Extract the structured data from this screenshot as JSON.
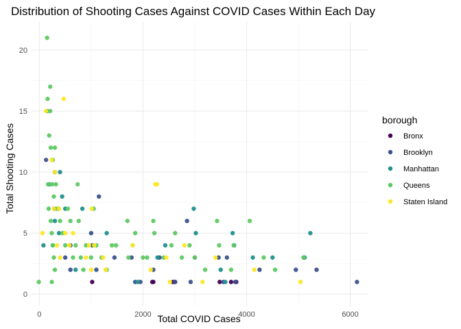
{
  "chart_data": {
    "type": "scatter",
    "title": "Distribution of Shooting Cases Against COVID Cases Within Each Day",
    "xlabel": "Total COVID Cases",
    "ylabel": "Total Shooting Cases",
    "xlim": [
      -150,
      6350
    ],
    "ylim": [
      -1,
      22.3
    ],
    "x_ticks": [
      0,
      2000,
      4000,
      6000
    ],
    "x_tick_labels": [
      "0",
      "2000",
      "4000",
      "6000"
    ],
    "y_ticks": [
      0,
      5,
      10,
      15,
      20
    ],
    "y_tick_labels": [
      "0",
      "5",
      "10",
      "15",
      "20"
    ],
    "grid": true,
    "legend": {
      "title": "borough",
      "placement": "right"
    },
    "series": [
      {
        "name": "Bronx",
        "color": "#440154",
        "points": [
          [
            1020,
            1
          ],
          [
            2200,
            1
          ],
          [
            2620,
            1
          ],
          [
            3480,
            1
          ],
          [
            3700,
            1
          ],
          [
            3800,
            1
          ],
          [
            2580,
            1
          ],
          [
            2180,
            1
          ]
        ]
      },
      {
        "name": "Brooklyn",
        "color": "#3b528b",
        "points": [
          [
            130,
            11
          ],
          [
            300,
            10
          ],
          [
            290,
            7
          ],
          [
            370,
            7
          ],
          [
            500,
            3
          ],
          [
            600,
            4
          ],
          [
            1000,
            5
          ],
          [
            1020,
            4
          ],
          [
            1150,
            8
          ],
          [
            1100,
            2
          ],
          [
            1450,
            3
          ],
          [
            1780,
            3
          ],
          [
            1850,
            1
          ],
          [
            1950,
            1
          ],
          [
            2200,
            2
          ],
          [
            2320,
            3
          ],
          [
            2620,
            1
          ],
          [
            2850,
            6
          ],
          [
            3000,
            3
          ],
          [
            3460,
            3
          ],
          [
            3620,
            3
          ],
          [
            3780,
            1
          ],
          [
            4250,
            2
          ],
          [
            4950,
            2
          ],
          [
            5350,
            2
          ],
          [
            6130,
            1
          ],
          [
            600,
            2
          ],
          [
            5100,
            3
          ],
          [
            2920,
            1
          ],
          [
            3550,
            1
          ]
        ]
      },
      {
        "name": "Manhattan",
        "color": "#21908d",
        "points": [
          [
            80,
            4
          ],
          [
            150,
            15
          ],
          [
            190,
            9
          ],
          [
            260,
            4
          ],
          [
            300,
            6
          ],
          [
            380,
            5
          ],
          [
            400,
            10
          ],
          [
            440,
            8
          ],
          [
            500,
            7
          ],
          [
            700,
            2
          ],
          [
            830,
            7
          ],
          [
            1050,
            4
          ],
          [
            1300,
            5
          ],
          [
            1900,
            1
          ],
          [
            2280,
            3
          ],
          [
            2430,
            4
          ],
          [
            2980,
            7
          ],
          [
            3020,
            5
          ],
          [
            3500,
            2
          ],
          [
            3730,
            5
          ],
          [
            3760,
            4
          ],
          [
            4500,
            3
          ],
          [
            5230,
            5
          ],
          [
            5120,
            3
          ],
          [
            4120,
            3
          ],
          [
            3590,
            1
          ]
        ]
      },
      {
        "name": "Queens",
        "color": "#5ec962",
        "points": [
          [
            150,
            21
          ],
          [
            210,
            17
          ],
          [
            160,
            16
          ],
          [
            190,
            13
          ],
          [
            220,
            12
          ],
          [
            210,
            15
          ],
          [
            170,
            9
          ],
          [
            180,
            7
          ],
          [
            250,
            9
          ],
          [
            260,
            11
          ],
          [
            280,
            8
          ],
          [
            300,
            12
          ],
          [
            320,
            9
          ],
          [
            350,
            7
          ],
          [
            220,
            6
          ],
          [
            240,
            5
          ],
          [
            260,
            4
          ],
          [
            280,
            3
          ],
          [
            300,
            2
          ],
          [
            240,
            1
          ],
          [
            400,
            6
          ],
          [
            450,
            5
          ],
          [
            500,
            4
          ],
          [
            550,
            7
          ],
          [
            600,
            6
          ],
          [
            650,
            3
          ],
          [
            700,
            4
          ],
          [
            740,
            9
          ],
          [
            760,
            6
          ],
          [
            800,
            3
          ],
          [
            850,
            2
          ],
          [
            900,
            4
          ],
          [
            1000,
            3
          ],
          [
            1050,
            7
          ],
          [
            1100,
            4
          ],
          [
            1200,
            3
          ],
          [
            1300,
            2
          ],
          [
            1400,
            4
          ],
          [
            1480,
            4
          ],
          [
            1700,
            6
          ],
          [
            1720,
            3
          ],
          [
            1800,
            4
          ],
          [
            1850,
            5
          ],
          [
            2000,
            3
          ],
          [
            2080,
            3
          ],
          [
            2200,
            6
          ],
          [
            2220,
            5
          ],
          [
            2400,
            3
          ],
          [
            2550,
            4
          ],
          [
            2620,
            5
          ],
          [
            2750,
            3
          ],
          [
            2900,
            4
          ],
          [
            3000,
            3
          ],
          [
            3200,
            2
          ],
          [
            3430,
            6
          ],
          [
            3470,
            4
          ],
          [
            3700,
            2
          ],
          [
            3750,
            4
          ],
          [
            4060,
            6
          ],
          [
            4330,
            3
          ],
          [
            4550,
            2
          ],
          [
            5100,
            3
          ],
          [
            -10,
            1
          ]
        ]
      },
      {
        "name": "Staten Island",
        "color": "#fde725",
        "points": [
          [
            130,
            15
          ],
          [
            470,
            16
          ],
          [
            300,
            10
          ],
          [
            240,
            11
          ],
          [
            280,
            7
          ],
          [
            380,
            7
          ],
          [
            340,
            4
          ],
          [
            400,
            3
          ],
          [
            500,
            5
          ],
          [
            580,
            4
          ],
          [
            1010,
            7
          ],
          [
            1060,
            4
          ],
          [
            960,
            4
          ],
          [
            900,
            3
          ],
          [
            1000,
            2
          ],
          [
            1230,
            3
          ],
          [
            1280,
            2
          ],
          [
            1800,
            4
          ],
          [
            2240,
            9
          ],
          [
            2270,
            9
          ],
          [
            2450,
            3
          ],
          [
            2520,
            1
          ],
          [
            2800,
            4
          ],
          [
            3400,
            3
          ],
          [
            4150,
            2
          ],
          [
            5040,
            1
          ],
          [
            650,
            5
          ],
          [
            60,
            5
          ],
          [
            2150,
            2
          ],
          [
            3150,
            1
          ]
        ]
      }
    ]
  }
}
